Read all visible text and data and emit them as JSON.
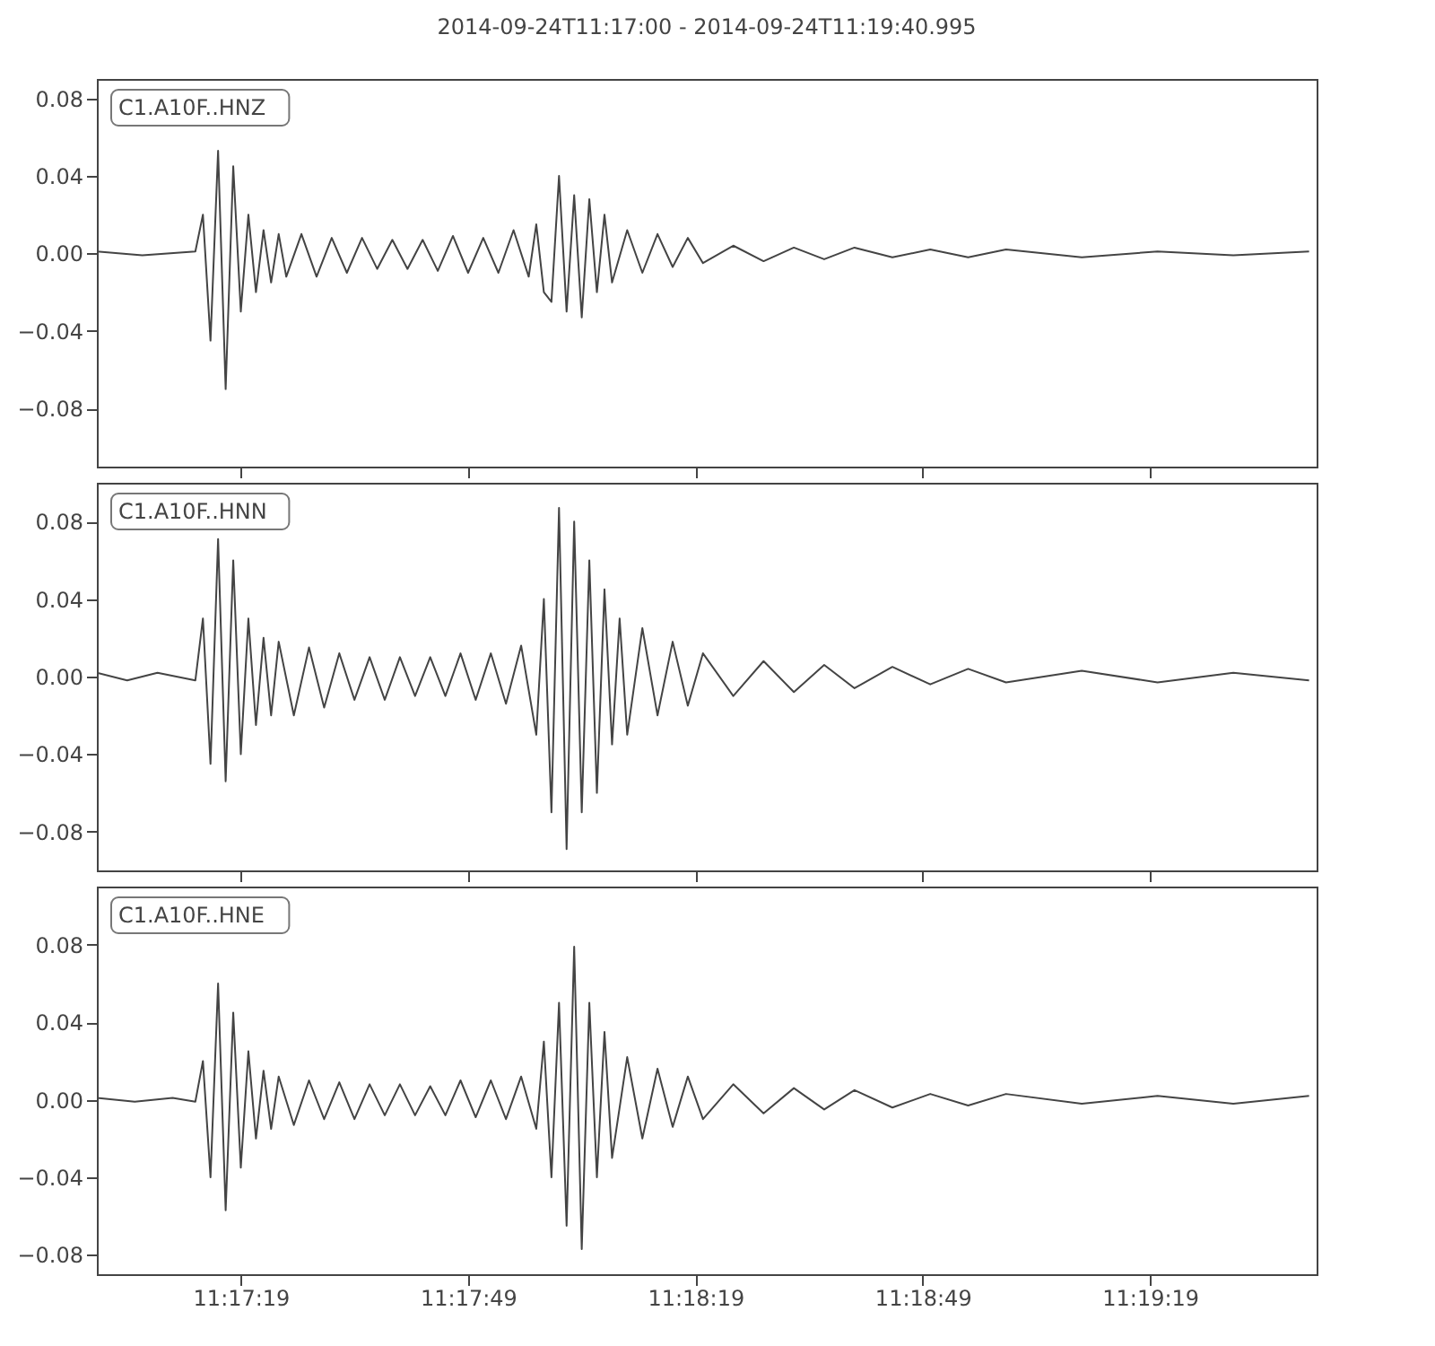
{
  "chart_data": [
    {
      "type": "line",
      "title": "2014-09-24T11:17:00  -  2014-09-24T11:19:40.995",
      "annotations": [
        "C1.A10F..HNZ"
      ],
      "tick_labels": "y",
      "x": [
        "2014-09-24T11:17:00",
        "2014-09-24T11:17:06",
        "2014-09-24T11:17:13",
        "2014-09-24T11:17:14",
        "2014-09-24T11:17:15",
        "2014-09-24T11:17:16",
        "2014-09-24T11:17:17",
        "2014-09-24T11:17:18",
        "2014-09-24T11:17:19",
        "2014-09-24T11:17:20",
        "2014-09-24T11:17:21",
        "2014-09-24T11:17:22",
        "2014-09-24T11:17:23",
        "2014-09-24T11:17:24",
        "2014-09-24T11:17:25",
        "2014-09-24T11:17:27",
        "2014-09-24T11:17:29",
        "2014-09-24T11:17:31",
        "2014-09-24T11:17:33",
        "2014-09-24T11:17:35",
        "2014-09-24T11:17:37",
        "2014-09-24T11:17:39",
        "2014-09-24T11:17:41",
        "2014-09-24T11:17:43",
        "2014-09-24T11:17:45",
        "2014-09-24T11:17:47",
        "2014-09-24T11:17:49",
        "2014-09-24T11:17:51",
        "2014-09-24T11:17:53",
        "2014-09-24T11:17:55",
        "2014-09-24T11:17:57",
        "2014-09-24T11:17:58",
        "2014-09-24T11:17:59",
        "2014-09-24T11:18:00",
        "2014-09-24T11:18:01",
        "2014-09-24T11:18:02",
        "2014-09-24T11:18:03",
        "2014-09-24T11:18:04",
        "2014-09-24T11:18:05",
        "2014-09-24T11:18:06",
        "2014-09-24T11:18:07",
        "2014-09-24T11:18:08",
        "2014-09-24T11:18:10",
        "2014-09-24T11:18:12",
        "2014-09-24T11:18:14",
        "2014-09-24T11:18:16",
        "2014-09-24T11:18:18",
        "2014-09-24T11:18:20",
        "2014-09-24T11:18:24",
        "2014-09-24T11:18:28",
        "2014-09-24T11:18:32",
        "2014-09-24T11:18:36",
        "2014-09-24T11:18:40",
        "2014-09-24T11:18:45",
        "2014-09-24T11:18:50",
        "2014-09-24T11:18:55",
        "2014-09-24T11:19:00",
        "2014-09-24T11:19:10",
        "2014-09-24T11:19:20",
        "2014-09-24T11:19:30",
        "2014-09-24T11:19:40"
      ],
      "series": [
        {
          "color": "#444444",
          "values": [
            0.001,
            -0.001,
            0.001,
            0.02,
            -0.045,
            0.053,
            -0.07,
            0.045,
            -0.03,
            0.02,
            -0.02,
            0.012,
            -0.015,
            0.01,
            -0.012,
            0.01,
            -0.012,
            0.008,
            -0.01,
            0.008,
            -0.008,
            0.007,
            -0.008,
            0.007,
            -0.009,
            0.009,
            -0.01,
            0.008,
            -0.01,
            0.012,
            -0.012,
            0.015,
            -0.02,
            -0.025,
            0.04,
            -0.03,
            0.03,
            -0.033,
            0.028,
            -0.02,
            0.02,
            -0.015,
            0.012,
            -0.01,
            0.01,
            -0.007,
            0.008,
            -0.005,
            0.004,
            -0.004,
            0.003,
            -0.003,
            0.003,
            -0.002,
            0.002,
            -0.002,
            0.002,
            -0.002,
            0.001,
            -0.001,
            0.001
          ]
        }
      ],
      "xlim": [
        "2014-09-24T11:17:00",
        "2014-09-24T11:19:40.995"
      ],
      "xticks": [
        {
          "value": "2014-09-24T11:17:19",
          "label": null
        },
        {
          "value": "2014-09-24T11:17:49",
          "label": null
        },
        {
          "value": "2014-09-24T11:18:19",
          "label": null
        },
        {
          "value": "2014-09-24T11:18:49",
          "label": null
        },
        {
          "value": "2014-09-24T11:19:19",
          "label": null
        }
      ],
      "ylim": [
        -0.11,
        0.09
      ],
      "yticks": [
        {
          "value": -0.08,
          "label": "−0.08"
        },
        {
          "value": -0.04,
          "label": "−0.04"
        },
        {
          "value": 0,
          "label": "0.00"
        },
        {
          "value": 0.04,
          "label": "0.04"
        },
        {
          "value": 0.08,
          "label": "0.08"
        }
      ]
    },
    {
      "type": "line",
      "annotations": [
        "C1.A10F..HNN"
      ],
      "tick_labels": "y",
      "x": [
        "2014-09-24T11:17:00",
        "2014-09-24T11:17:04",
        "2014-09-24T11:17:08",
        "2014-09-24T11:17:13",
        "2014-09-24T11:17:14",
        "2014-09-24T11:17:15",
        "2014-09-24T11:17:16",
        "2014-09-24T11:17:17",
        "2014-09-24T11:17:18",
        "2014-09-24T11:17:19",
        "2014-09-24T11:17:20",
        "2014-09-24T11:17:21",
        "2014-09-24T11:17:22",
        "2014-09-24T11:17:23",
        "2014-09-24T11:17:24",
        "2014-09-24T11:17:26",
        "2014-09-24T11:17:28",
        "2014-09-24T11:17:30",
        "2014-09-24T11:17:32",
        "2014-09-24T11:17:34",
        "2014-09-24T11:17:36",
        "2014-09-24T11:17:38",
        "2014-09-24T11:17:40",
        "2014-09-24T11:17:42",
        "2014-09-24T11:17:44",
        "2014-09-24T11:17:46",
        "2014-09-24T11:17:48",
        "2014-09-24T11:17:50",
        "2014-09-24T11:17:52",
        "2014-09-24T11:17:54",
        "2014-09-24T11:17:56",
        "2014-09-24T11:17:58",
        "2014-09-24T11:17:59",
        "2014-09-24T11:18:00",
        "2014-09-24T11:18:01",
        "2014-09-24T11:18:02",
        "2014-09-24T11:18:03",
        "2014-09-24T11:18:04",
        "2014-09-24T11:18:05",
        "2014-09-24T11:18:06",
        "2014-09-24T11:18:07",
        "2014-09-24T11:18:08",
        "2014-09-24T11:18:09",
        "2014-09-24T11:18:10",
        "2014-09-24T11:18:12",
        "2014-09-24T11:18:14",
        "2014-09-24T11:18:16",
        "2014-09-24T11:18:18",
        "2014-09-24T11:18:20",
        "2014-09-24T11:18:24",
        "2014-09-24T11:18:28",
        "2014-09-24T11:18:32",
        "2014-09-24T11:18:36",
        "2014-09-24T11:18:40",
        "2014-09-24T11:18:45",
        "2014-09-24T11:18:50",
        "2014-09-24T11:18:55",
        "2014-09-24T11:19:00",
        "2014-09-24T11:19:10",
        "2014-09-24T11:19:20",
        "2014-09-24T11:19:30",
        "2014-09-24T11:19:40"
      ],
      "series": [
        {
          "color": "#444444",
          "values": [
            0.002,
            -0.002,
            0.002,
            -0.002,
            0.03,
            -0.045,
            0.071,
            -0.054,
            0.06,
            -0.04,
            0.03,
            -0.025,
            0.02,
            -0.02,
            0.018,
            -0.02,
            0.015,
            -0.016,
            0.012,
            -0.012,
            0.01,
            -0.012,
            0.01,
            -0.01,
            0.01,
            -0.01,
            0.012,
            -0.012,
            0.012,
            -0.014,
            0.016,
            -0.03,
            0.04,
            -0.07,
            0.087,
            -0.089,
            0.08,
            -0.07,
            0.06,
            -0.06,
            0.045,
            -0.035,
            0.03,
            -0.03,
            0.025,
            -0.02,
            0.018,
            -0.015,
            0.012,
            -0.01,
            0.008,
            -0.008,
            0.006,
            -0.006,
            0.005,
            -0.004,
            0.004,
            -0.003,
            0.003,
            -0.003,
            0.002,
            -0.002
          ]
        }
      ],
      "xlim": [
        "2014-09-24T11:17:00",
        "2014-09-24T11:19:40.995"
      ],
      "xticks": [
        {
          "value": "2014-09-24T11:17:19",
          "label": null
        },
        {
          "value": "2014-09-24T11:17:49",
          "label": null
        },
        {
          "value": "2014-09-24T11:18:19",
          "label": null
        },
        {
          "value": "2014-09-24T11:18:49",
          "label": null
        },
        {
          "value": "2014-09-24T11:19:19",
          "label": null
        }
      ],
      "ylim": [
        -0.1,
        0.1
      ],
      "yticks": [
        {
          "value": -0.08,
          "label": "−0.08"
        },
        {
          "value": -0.04,
          "label": "−0.04"
        },
        {
          "value": 0,
          "label": "0.00"
        },
        {
          "value": 0.04,
          "label": "0.04"
        },
        {
          "value": 0.08,
          "label": "0.08"
        }
      ]
    },
    {
      "type": "line",
      "annotations": [
        "C1.A10F..HNE"
      ],
      "x": [
        "2014-09-24T11:17:00",
        "2014-09-24T11:17:05",
        "2014-09-24T11:17:10",
        "2014-09-24T11:17:13",
        "2014-09-24T11:17:14",
        "2014-09-24T11:17:15",
        "2014-09-24T11:17:16",
        "2014-09-24T11:17:17",
        "2014-09-24T11:17:18",
        "2014-09-24T11:17:19",
        "2014-09-24T11:17:20",
        "2014-09-24T11:17:21",
        "2014-09-24T11:17:22",
        "2014-09-24T11:17:23",
        "2014-09-24T11:17:24",
        "2014-09-24T11:17:26",
        "2014-09-24T11:17:28",
        "2014-09-24T11:17:30",
        "2014-09-24T11:17:32",
        "2014-09-24T11:17:34",
        "2014-09-24T11:17:36",
        "2014-09-24T11:17:38",
        "2014-09-24T11:17:40",
        "2014-09-24T11:17:42",
        "2014-09-24T11:17:44",
        "2014-09-24T11:17:46",
        "2014-09-24T11:17:48",
        "2014-09-24T11:17:50",
        "2014-09-24T11:17:52",
        "2014-09-24T11:17:54",
        "2014-09-24T11:17:56",
        "2014-09-24T11:17:58",
        "2014-09-24T11:17:59",
        "2014-09-24T11:18:00",
        "2014-09-24T11:18:01",
        "2014-09-24T11:18:02",
        "2014-09-24T11:18:03",
        "2014-09-24T11:18:04",
        "2014-09-24T11:18:05",
        "2014-09-24T11:18:06",
        "2014-09-24T11:18:07",
        "2014-09-24T11:18:08",
        "2014-09-24T11:18:10",
        "2014-09-24T11:18:12",
        "2014-09-24T11:18:14",
        "2014-09-24T11:18:16",
        "2014-09-24T11:18:18",
        "2014-09-24T11:18:20",
        "2014-09-24T11:18:24",
        "2014-09-24T11:18:28",
        "2014-09-24T11:18:32",
        "2014-09-24T11:18:36",
        "2014-09-24T11:18:40",
        "2014-09-24T11:18:45",
        "2014-09-24T11:18:50",
        "2014-09-24T11:18:55",
        "2014-09-24T11:19:00",
        "2014-09-24T11:19:10",
        "2014-09-24T11:19:20",
        "2014-09-24T11:19:30",
        "2014-09-24T11:19:40"
      ],
      "series": [
        {
          "color": "#444444",
          "values": [
            0.001,
            -0.001,
            0.001,
            -0.001,
            0.02,
            -0.04,
            0.06,
            -0.057,
            0.045,
            -0.035,
            0.025,
            -0.02,
            0.015,
            -0.015,
            0.012,
            -0.013,
            0.01,
            -0.01,
            0.009,
            -0.01,
            0.008,
            -0.008,
            0.008,
            -0.008,
            0.007,
            -0.008,
            0.01,
            -0.009,
            0.01,
            -0.01,
            0.012,
            -0.015,
            0.03,
            -0.04,
            0.05,
            -0.065,
            0.079,
            -0.077,
            0.05,
            -0.04,
            0.035,
            -0.03,
            0.022,
            -0.02,
            0.016,
            -0.014,
            0.012,
            -0.01,
            0.008,
            -0.007,
            0.006,
            -0.005,
            0.005,
            -0.004,
            0.003,
            -0.003,
            0.003,
            -0.002,
            0.002,
            -0.002,
            0.002
          ]
        }
      ],
      "xlim": [
        "2014-09-24T11:17:00",
        "2014-09-24T11:19:40.995"
      ],
      "xticks": [
        {
          "value": "2014-09-24T11:17:19",
          "label": "11:17:19"
        },
        {
          "value": "2014-09-24T11:17:49",
          "label": "11:17:49"
        },
        {
          "value": "2014-09-24T11:18:19",
          "label": "11:18:19"
        },
        {
          "value": "2014-09-24T11:18:49",
          "label": "11:18:49"
        },
        {
          "value": "2014-09-24T11:19:19",
          "label": "11:19:19"
        }
      ],
      "ylim": [
        -0.09,
        0.11
      ],
      "yticks": [
        {
          "value": -0.08,
          "label": "−0.08"
        },
        {
          "value": -0.04,
          "label": "−0.04"
        },
        {
          "value": 0,
          "label": "0.00"
        },
        {
          "value": 0.04,
          "label": "0.04"
        },
        {
          "value": 0.08,
          "label": "0.08"
        }
      ]
    }
  ]
}
